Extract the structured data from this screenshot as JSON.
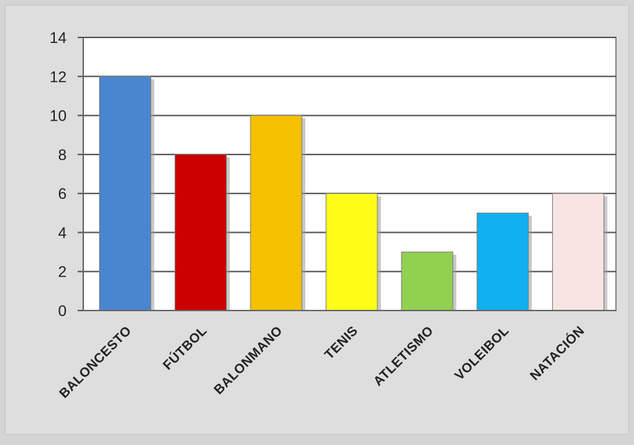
{
  "chart_data": {
    "type": "bar",
    "categories": [
      "Baloncesto",
      "Fútbol",
      "Balonmano",
      "Tenis",
      "Atletismo",
      "Voleibol",
      "Natación"
    ],
    "values": [
      12,
      8,
      10,
      6,
      3,
      5,
      6
    ],
    "colors": [
      "#4a86cf",
      "#cc0000",
      "#f5c000",
      "#ffff1a",
      "#92d050",
      "#11b0f0",
      "#f9e4e4"
    ],
    "ylim": [
      0,
      14
    ],
    "yticks": [
      0,
      2,
      4,
      6,
      8,
      10,
      12,
      14
    ],
    "grid": true,
    "title": "",
    "xlabel": "",
    "ylabel": ""
  }
}
